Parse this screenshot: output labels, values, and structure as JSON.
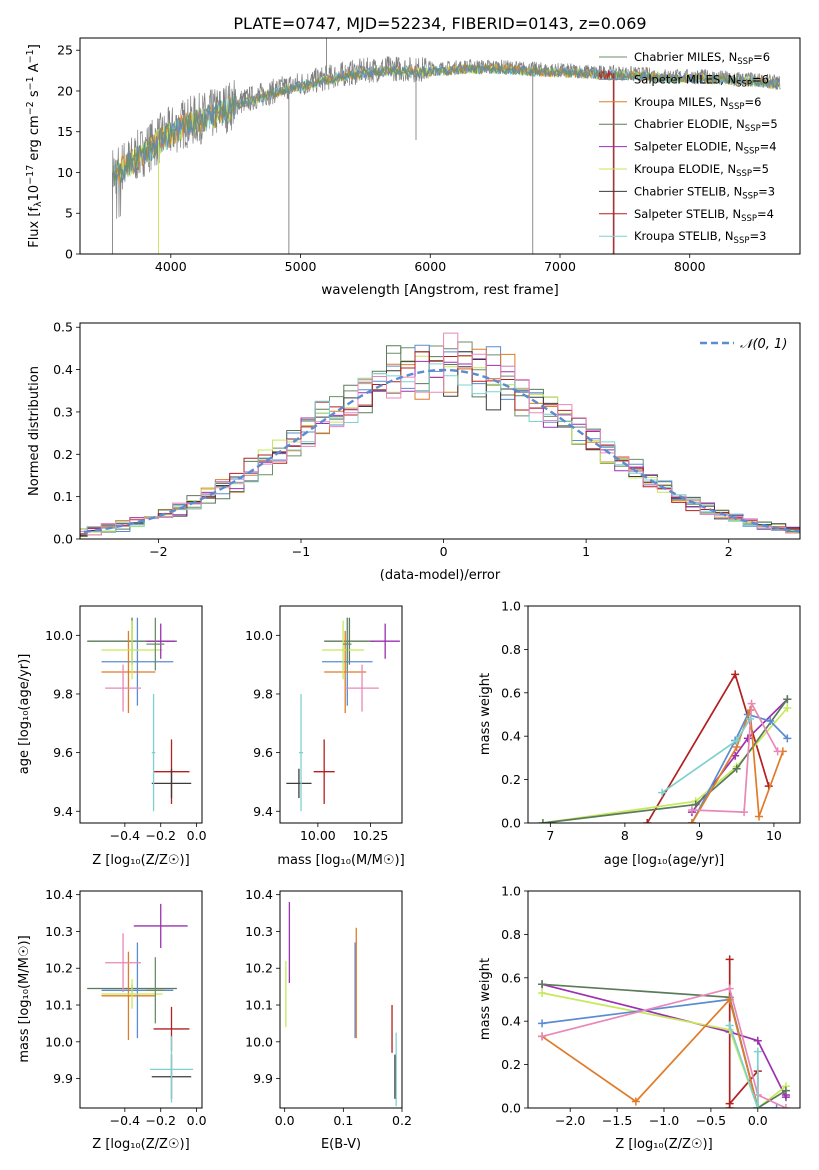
{
  "figure_title": "PLATE=0747, MJD=52234, FIBERID=0143, z=0.069",
  "colors": {
    "Chabrier MILES": "#6b8e6b",
    "Salpeter MILES": "#5b8bd0",
    "Kroupa MILES": "#e07b28",
    "Chabrier ELODIE": "#5a7a5a",
    "Salpeter ELODIE": "#9b30b0",
    "Kroupa ELODIE": "#c6e85a",
    "Chabrier STELIB": "#3c3c3c",
    "Salpeter STELIB": "#b22020",
    "Kroupa STELIB": "#7fd0d0",
    "observed": "#808080",
    "pink": "#e888b8"
  },
  "chart_data": [
    {
      "id": "spectrum",
      "type": "line",
      "title": "PLATE=0747, MJD=52234, FIBERID=0143, z=0.069",
      "xlabel": "wavelength [Angstrom, rest frame]",
      "ylabel_main": "Flux [f",
      "ylabel_sub": "λ",
      "ylabel_rest": "10",
      "ylabel_exp": "−17",
      "ylabel_units": " erg cm",
      "ylabel_exp2": "−2",
      "ylabel_s": " s",
      "ylabel_exp3": "−1",
      "ylabel_A": " A",
      "ylabel_exp4": "−1",
      "ylabel_end": "]",
      "xlim": [
        3300,
        8850
      ],
      "ylim": [
        0,
        26.5
      ],
      "xticks": [
        4000,
        5000,
        6000,
        7000,
        8000
      ],
      "yticks": [
        0,
        5,
        10,
        15,
        20,
        25
      ],
      "continuum_x": [
        3550,
        3700,
        3900,
        4100,
        4300,
        4500,
        4700,
        4900,
        5100,
        5300,
        5500,
        5700,
        5900,
        6100,
        6300,
        6500,
        6700,
        6900,
        7100,
        7300,
        7500,
        7700,
        7900,
        8100,
        8300,
        8500,
        8700
      ],
      "continuum_y": [
        10.0,
        11.5,
        14.0,
        16.0,
        17.0,
        18.5,
        19.5,
        20.5,
        21.2,
        22.0,
        22.5,
        22.8,
        22.6,
        22.8,
        23.0,
        23.0,
        22.8,
        22.6,
        22.5,
        22.3,
        22.2,
        22.0,
        21.8,
        21.8,
        21.6,
        21.4,
        21.0
      ],
      "legend": [
        {
          "label": "Chabrier MILES, N",
          "sub": "SSP",
          "tail": "=6",
          "color_key": "Chabrier MILES"
        },
        {
          "label": "Salpeter MILES, N",
          "sub": "SSP",
          "tail": "=6",
          "color_key": "Salpeter MILES"
        },
        {
          "label": "Kroupa MILES, N",
          "sub": "SSP",
          "tail": "=6",
          "color_key": "Kroupa MILES"
        },
        {
          "label": "Chabrier ELODIE, N",
          "sub": "SSP",
          "tail": "=5",
          "color_key": "Chabrier ELODIE"
        },
        {
          "label": "Salpeter ELODIE, N",
          "sub": "SSP",
          "tail": "=4",
          "color_key": "Salpeter ELODIE"
        },
        {
          "label": "Kroupa ELODIE, N",
          "sub": "SSP",
          "tail": "=5",
          "color_key": "Kroupa ELODIE"
        },
        {
          "label": "Chabrier STELIB, N",
          "sub": "SSP",
          "tail": "=3",
          "color_key": "Chabrier STELIB"
        },
        {
          "label": "Salpeter STELIB, N",
          "sub": "SSP",
          "tail": "=4",
          "color_key": "Salpeter STELIB"
        },
        {
          "label": "Kroupa STELIB, N",
          "sub": "SSP",
          "tail": "=3",
          "color_key": "Kroupa STELIB"
        }
      ]
    },
    {
      "id": "residuals",
      "type": "bar",
      "xlabel": "(data-model)/error",
      "ylabel": "Normed distribution",
      "xlim": [
        -2.55,
        2.5
      ],
      "ylim": [
        0,
        0.51
      ],
      "xticks": [
        -2,
        -1,
        0,
        1,
        2
      ],
      "xtick_labels": [
        "−2",
        "−1",
        "0",
        "1",
        "2"
      ],
      "yticks": [
        0.0,
        0.1,
        0.2,
        0.3,
        0.4,
        0.5
      ],
      "ytick_labels": [
        "0.0",
        "0.1",
        "0.2",
        "0.3",
        "0.4",
        "0.5"
      ],
      "bin_width": 0.1,
      "legend_label": "𝒩(0, 1)",
      "grid": true
    },
    {
      "id": "age_vs_Z",
      "type": "scatter",
      "xlabel": "Z [log₁₀(Z/Z☉)]",
      "ylabel": "age  [log₁₀(age/yr)]",
      "xlim": [
        -0.65,
        0.03
      ],
      "ylim": [
        9.36,
        10.1
      ],
      "xticks": [
        -0.4,
        -0.2,
        0.0
      ],
      "xtick_labels": [
        "−0.4",
        "−0.2",
        "0.0"
      ],
      "yticks": [
        9.4,
        9.6,
        9.8,
        10.0
      ],
      "ytick_labels": [
        "9.4",
        "9.6",
        "9.8",
        "10.0"
      ],
      "points": [
        {
          "x": -0.36,
          "xerr": 0.25,
          "y": 9.98,
          "yerr": 0.08,
          "color_key": "Chabrier ELODIE"
        },
        {
          "x": -0.33,
          "xerr": 0.2,
          "y": 9.91,
          "yerr": 0.15,
          "color_key": "Salpeter MILES"
        },
        {
          "x": -0.38,
          "xerr": 0.15,
          "y": 9.875,
          "yerr": 0.14,
          "color_key": "Kroupa MILES"
        },
        {
          "x": -0.36,
          "xerr": 0.17,
          "y": 9.95,
          "yerr": 0.1,
          "color_key": "Kroupa ELODIE"
        },
        {
          "x": -0.41,
          "xerr": 0.1,
          "y": 9.82,
          "yerr": 0.08,
          "color_key": "pink"
        },
        {
          "x": -0.2,
          "xerr": 0.08,
          "y": 9.98,
          "yerr": 0.06,
          "color_key": "Salpeter ELODIE"
        },
        {
          "x": -0.23,
          "xerr": 0.05,
          "y": 9.97,
          "yerr": 0.09,
          "color_key": "Chabrier MILES"
        },
        {
          "x": -0.14,
          "xerr": 0.1,
          "y": 9.535,
          "yerr": 0.11,
          "color_key": "Salpeter STELIB"
        },
        {
          "x": -0.14,
          "xerr": 0.11,
          "y": 9.495,
          "yerr": 0.05,
          "color_key": "Chabrier STELIB"
        },
        {
          "x": -0.24,
          "xerr": 0.01,
          "y": 9.6,
          "yerr": 0.2,
          "color_key": "Kroupa STELIB"
        }
      ]
    },
    {
      "id": "age_vs_mass",
      "type": "scatter",
      "xlabel": "mass [log₁₀(M/M☉)]",
      "xlim": [
        9.82,
        10.4
      ],
      "ylim": [
        9.36,
        10.1
      ],
      "xticks": [
        10.0,
        10.25
      ],
      "xtick_labels": [
        "10.00",
        "10.25"
      ],
      "yticks": [
        9.4,
        9.6,
        9.8,
        10.0
      ],
      "ytick_labels": [
        "9.4",
        "9.6",
        "9.8",
        "10.0"
      ],
      "points": [
        {
          "x": 10.15,
          "xerr": 0.12,
          "y": 9.98,
          "yerr": 0.08,
          "color_key": "Chabrier ELODIE"
        },
        {
          "x": 10.14,
          "xerr": 0.12,
          "y": 9.91,
          "yerr": 0.15,
          "color_key": "Salpeter MILES"
        },
        {
          "x": 10.13,
          "xerr": 0.1,
          "y": 9.875,
          "yerr": 0.14,
          "color_key": "Kroupa MILES"
        },
        {
          "x": 10.12,
          "xerr": 0.1,
          "y": 9.95,
          "yerr": 0.1,
          "color_key": "Kroupa ELODIE"
        },
        {
          "x": 10.21,
          "xerr": 0.08,
          "y": 9.82,
          "yerr": 0.08,
          "color_key": "pink"
        },
        {
          "x": 10.32,
          "xerr": 0.07,
          "y": 9.98,
          "yerr": 0.06,
          "color_key": "Salpeter ELODIE"
        },
        {
          "x": 10.14,
          "xerr": 0.02,
          "y": 9.97,
          "yerr": 0.09,
          "color_key": "Chabrier MILES"
        },
        {
          "x": 10.03,
          "xerr": 0.05,
          "y": 9.535,
          "yerr": 0.11,
          "color_key": "Salpeter STELIB"
        },
        {
          "x": 9.91,
          "xerr": 0.06,
          "y": 9.495,
          "yerr": 0.05,
          "color_key": "Chabrier STELIB"
        },
        {
          "x": 9.92,
          "xerr": 0.01,
          "y": 9.6,
          "yerr": 0.2,
          "color_key": "Kroupa STELIB"
        }
      ]
    },
    {
      "id": "weight_vs_age",
      "type": "line",
      "xlabel": "age  [log₁₀(age/yr)]",
      "ylabel": "mass weight",
      "xlim": [
        6.7,
        10.35
      ],
      "ylim": [
        0,
        1.0
      ],
      "xticks": [
        7,
        8,
        9,
        10
      ],
      "xtick_labels": [
        "7",
        "8",
        "9",
        "10"
      ],
      "yticks": [
        0.0,
        0.2,
        0.4,
        0.6,
        0.8,
        1.0
      ],
      "ytick_labels": [
        "0.0",
        "0.2",
        "0.4",
        "0.6",
        "0.8",
        "1.0"
      ],
      "series": [
        {
          "color_key": "Salpeter STELIB",
          "x": [
            8.3,
            9.48,
            9.93
          ],
          "y": [
            0.0,
            0.685,
            0.17
          ]
        },
        {
          "color_key": "Salpeter ELODIE",
          "x": [
            8.9,
            9.48,
            9.65,
            10.18
          ],
          "y": [
            0.05,
            0.31,
            0.39,
            0.57
          ]
        },
        {
          "color_key": "Kroupa ELODIE",
          "x": [
            6.9,
            8.95,
            9.5,
            10.18
          ],
          "y": [
            0.0,
            0.1,
            0.26,
            0.53
          ]
        },
        {
          "color_key": "Chabrier ELODIE",
          "x": [
            6.9,
            8.95,
            9.5,
            10.18
          ],
          "y": [
            0.0,
            0.085,
            0.25,
            0.57
          ]
        },
        {
          "color_key": "Salpeter MILES",
          "x": [
            8.9,
            9.48,
            9.65,
            9.95,
            10.18
          ],
          "y": [
            0.0,
            0.38,
            0.5,
            0.47,
            0.39
          ]
        },
        {
          "color_key": "Kroupa MILES",
          "x": [
            8.9,
            9.5,
            9.68,
            9.8,
            10.12
          ],
          "y": [
            0.0,
            0.35,
            0.52,
            0.03,
            0.33
          ]
        },
        {
          "color_key": "pink",
          "x": [
            8.9,
            9.6,
            9.7,
            10.05
          ],
          "y": [
            0.06,
            0.05,
            0.55,
            0.33
          ]
        },
        {
          "color_key": "Kroupa STELIB",
          "x": [
            8.5,
            9.5,
            9.68
          ],
          "y": [
            0.14,
            0.38,
            0.48
          ]
        }
      ]
    },
    {
      "id": "mass_vs_Z",
      "type": "scatter",
      "xlabel": "Z [log₁₀(Z/Z☉)]",
      "ylabel": "mass [log₁₀(M/M☉)]",
      "xlim": [
        -0.65,
        0.03
      ],
      "ylim": [
        9.82,
        10.41
      ],
      "xticks": [
        -0.4,
        -0.2,
        0.0
      ],
      "xtick_labels": [
        "−0.4",
        "−0.2",
        "0.0"
      ],
      "yticks": [
        9.9,
        10.0,
        10.1,
        10.2,
        10.3,
        10.4
      ],
      "ytick_labels": [
        "9.9",
        "10.0",
        "10.1",
        "10.2",
        "10.3",
        "10.4"
      ],
      "points": [
        {
          "x": -0.36,
          "xerr": 0.25,
          "y": 10.145,
          "yerr": 0.01,
          "color_key": "Chabrier ELODIE"
        },
        {
          "x": -0.33,
          "xerr": 0.2,
          "y": 10.14,
          "yerr": 0.13,
          "color_key": "Salpeter MILES"
        },
        {
          "x": -0.38,
          "xerr": 0.15,
          "y": 10.125,
          "yerr": 0.12,
          "color_key": "Kroupa MILES"
        },
        {
          "x": -0.36,
          "xerr": 0.17,
          "y": 10.13,
          "yerr": 0.04,
          "color_key": "Kroupa ELODIE"
        },
        {
          "x": -0.41,
          "xerr": 0.1,
          "y": 10.215,
          "yerr": 0.08,
          "color_key": "pink"
        },
        {
          "x": -0.2,
          "xerr": 0.15,
          "y": 10.315,
          "yerr": 0.06,
          "color_key": "Salpeter ELODIE"
        },
        {
          "x": -0.23,
          "xerr": 0.05,
          "y": 10.14,
          "yerr": 0.09,
          "color_key": "Chabrier MILES"
        },
        {
          "x": -0.14,
          "xerr": 0.1,
          "y": 10.035,
          "yerr": 0.06,
          "color_key": "Salpeter STELIB"
        },
        {
          "x": -0.14,
          "xerr": 0.11,
          "y": 9.905,
          "yerr": 0.06,
          "color_key": "Chabrier STELIB"
        },
        {
          "x": -0.14,
          "xerr": 0.12,
          "y": 9.925,
          "yerr": 0.09,
          "color_key": "Kroupa STELIB"
        }
      ]
    },
    {
      "id": "mass_vs_ebv",
      "type": "scatter",
      "xlabel": "E(B-V)",
      "xlim": [
        -0.008,
        0.2
      ],
      "ylim": [
        9.82,
        10.41
      ],
      "xticks": [
        0.0,
        0.1,
        0.2
      ],
      "xtick_labels": [
        "0.0",
        "0.1",
        "0.2"
      ],
      "yticks": [
        9.9,
        10.0,
        10.1,
        10.2,
        10.3,
        10.4
      ],
      "ytick_labels": [
        "9.9",
        "10.0",
        "10.1",
        "10.2",
        "10.3",
        "10.4"
      ],
      "points": [
        {
          "x": 0.002,
          "xerr": 0.0,
          "y": 10.13,
          "yerr": 0.09,
          "color_key": "Kroupa ELODIE"
        },
        {
          "x": 0.008,
          "xerr": 0.0,
          "y": 10.27,
          "yerr": 0.11,
          "color_key": "Salpeter ELODIE"
        },
        {
          "x": 0.12,
          "xerr": 0.0,
          "y": 10.14,
          "yerr": 0.13,
          "color_key": "Salpeter MILES"
        },
        {
          "x": 0.122,
          "xerr": 0.0,
          "y": 10.16,
          "yerr": 0.15,
          "color_key": "Kroupa MILES"
        },
        {
          "x": 0.183,
          "xerr": 0.0,
          "y": 10.035,
          "yerr": 0.065,
          "color_key": "Salpeter STELIB"
        },
        {
          "x": 0.188,
          "xerr": 0.0,
          "y": 9.905,
          "yerr": 0.06,
          "color_key": "Chabrier STELIB"
        },
        {
          "x": 0.19,
          "xerr": 0.0,
          "y": 9.925,
          "yerr": 0.1,
          "color_key": "Kroupa STELIB"
        }
      ]
    },
    {
      "id": "weight_vs_Z",
      "type": "line",
      "xlabel": "Z [log₁₀(Z/Z☉)]",
      "ylabel": "mass weight",
      "xlim": [
        -2.45,
        0.45
      ],
      "ylim": [
        0,
        1.0
      ],
      "xticks": [
        -2.0,
        -1.5,
        -1.0,
        -0.5,
        0.0
      ],
      "xtick_labels": [
        "−2.0",
        "−1.5",
        "−1.0",
        "−0.5",
        "0.0"
      ],
      "yticks": [
        0.0,
        0.2,
        0.4,
        0.6,
        0.8,
        1.0
      ],
      "ytick_labels": [
        "0.0",
        "0.2",
        "0.4",
        "0.6",
        "0.8",
        "1.0"
      ],
      "series": [
        {
          "color_key": "Salpeter STELIB",
          "x": [
            -0.3,
            -0.3,
            -0.3,
            0.0,
            0.0
          ],
          "y": [
            0.0,
            0.685,
            0.02,
            0.17,
            0.0
          ]
        },
        {
          "color_key": "Salpeter ELODIE",
          "x": [
            -2.3,
            -0.3,
            0.0,
            0.3,
            0.3
          ],
          "y": [
            0.57,
            0.35,
            0.31,
            0.05,
            0.06
          ]
        },
        {
          "color_key": "Kroupa ELODIE",
          "x": [
            -2.3,
            -0.3,
            0.0,
            0.3
          ],
          "y": [
            0.53,
            0.36,
            0.0,
            0.1
          ]
        },
        {
          "color_key": "Chabrier ELODIE",
          "x": [
            -2.3,
            -0.3,
            0.0,
            0.3
          ],
          "y": [
            0.57,
            0.51,
            0.0,
            0.08
          ]
        },
        {
          "color_key": "Salpeter MILES",
          "x": [
            -2.3,
            -0.3,
            0.0,
            0.2
          ],
          "y": [
            0.39,
            0.5,
            0.0,
            0.0
          ]
        },
        {
          "color_key": "Kroupa MILES",
          "x": [
            -2.3,
            -1.3,
            -0.3,
            0.0
          ],
          "y": [
            0.33,
            0.03,
            0.5,
            0.0
          ]
        },
        {
          "color_key": "pink",
          "x": [
            -2.3,
            -0.3,
            0.0,
            0.3
          ],
          "y": [
            0.33,
            0.55,
            0.06,
            0.0
          ]
        },
        {
          "color_key": "Kroupa STELIB",
          "x": [
            -0.3,
            0.0,
            0.0
          ],
          "y": [
            0.38,
            0.0,
            0.26
          ]
        }
      ]
    }
  ]
}
